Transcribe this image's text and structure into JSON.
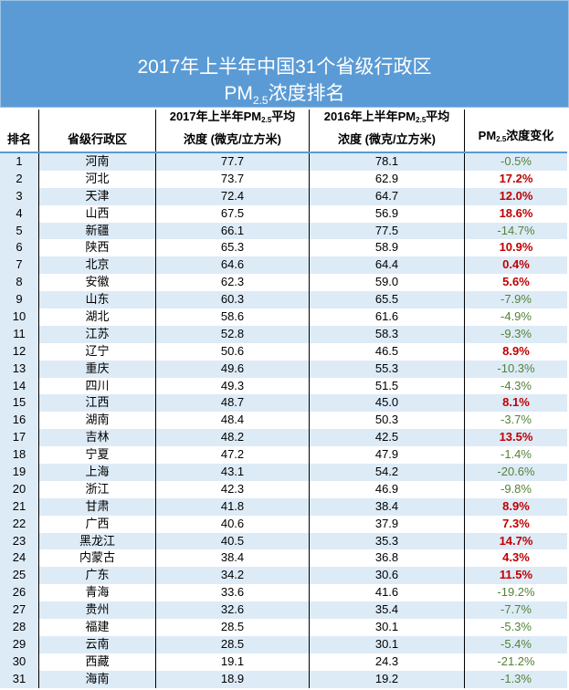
{
  "title": {
    "line1": "2017年上半年中国31个省级行政区",
    "line2_prefix": "PM",
    "line2_sub": "2.5",
    "line2_suffix": "浓度排名"
  },
  "headers": {
    "rank": "排名",
    "region": "省级行政区",
    "y2017_a": "2017年上半年PM",
    "y2017_sub": "2.5",
    "y2017_b": "平均",
    "y2017_c": "浓度 (微克/立方米)",
    "y2016_a": "2016年上半年PM",
    "y2016_sub": "2.5",
    "y2016_b": "平均",
    "y2016_c": "浓度 (微克/立方米)",
    "change_a": "PM",
    "change_sub": "2.5",
    "change_b": "浓度变化"
  },
  "colors": {
    "banner": "#5b9bd5",
    "increase": "#c00000",
    "decrease": "#548235",
    "stripe": "#ddebf7"
  },
  "rows": [
    [
      "1",
      "河南",
      "77.7",
      "78.1",
      "-0.5%"
    ],
    [
      "2",
      "河北",
      "73.7",
      "62.9",
      "17.2%"
    ],
    [
      "3",
      "天津",
      "72.4",
      "64.7",
      "12.0%"
    ],
    [
      "4",
      "山西",
      "67.5",
      "56.9",
      "18.6%"
    ],
    [
      "5",
      "新疆",
      "66.1",
      "77.5",
      "-14.7%"
    ],
    [
      "6",
      "陕西",
      "65.3",
      "58.9",
      "10.9%"
    ],
    [
      "7",
      "北京",
      "64.6",
      "64.4",
      "0.4%"
    ],
    [
      "8",
      "安徽",
      "62.3",
      "59.0",
      "5.6%"
    ],
    [
      "9",
      "山东",
      "60.3",
      "65.5",
      "-7.9%"
    ],
    [
      "10",
      "湖北",
      "58.6",
      "61.6",
      "-4.9%"
    ],
    [
      "11",
      "江苏",
      "52.8",
      "58.3",
      "-9.3%"
    ],
    [
      "12",
      "辽宁",
      "50.6",
      "46.5",
      "8.9%"
    ],
    [
      "13",
      "重庆",
      "49.6",
      "55.3",
      "-10.3%"
    ],
    [
      "14",
      "四川",
      "49.3",
      "51.5",
      "-4.3%"
    ],
    [
      "15",
      "江西",
      "48.7",
      "45.0",
      "8.1%"
    ],
    [
      "16",
      "湖南",
      "48.4",
      "50.3",
      "-3.7%"
    ],
    [
      "17",
      "吉林",
      "48.2",
      "42.5",
      "13.5%"
    ],
    [
      "18",
      "宁夏",
      "47.2",
      "47.9",
      "-1.4%"
    ],
    [
      "19",
      "上海",
      "43.1",
      "54.2",
      "-20.6%"
    ],
    [
      "20",
      "浙江",
      "42.3",
      "46.9",
      "-9.8%"
    ],
    [
      "21",
      "甘肃",
      "41.8",
      "38.4",
      "8.9%"
    ],
    [
      "22",
      "广西",
      "40.6",
      "37.9",
      "7.3%"
    ],
    [
      "23",
      "黑龙江",
      "40.5",
      "35.3",
      "14.7%"
    ],
    [
      "24",
      "内蒙古",
      "38.4",
      "36.8",
      "4.3%"
    ],
    [
      "25",
      "广东",
      "34.2",
      "30.6",
      "11.5%"
    ],
    [
      "26",
      "青海",
      "33.6",
      "41.6",
      "-19.2%"
    ],
    [
      "27",
      "贵州",
      "32.6",
      "35.4",
      "-7.7%"
    ],
    [
      "28",
      "福建",
      "28.5",
      "30.1",
      "-5.3%"
    ],
    [
      "29",
      "云南",
      "28.5",
      "30.1",
      "-5.4%"
    ],
    [
      "30",
      "西藏",
      "19.1",
      "24.3",
      "-21.2%"
    ],
    [
      "31",
      "海南",
      "18.9",
      "19.2",
      "-1.3%"
    ]
  ]
}
